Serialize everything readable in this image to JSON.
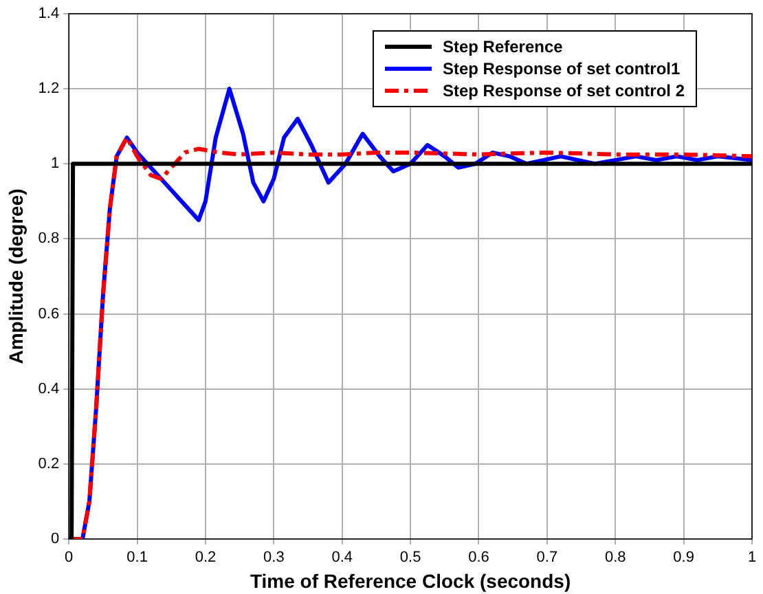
{
  "chart_data": {
    "type": "line",
    "xlabel": "Time of Reference Clock (seconds)",
    "ylabel": "Amplitude (degree)",
    "xlim": [
      0,
      1
    ],
    "xticks": [
      0,
      0.1,
      0.2,
      0.3,
      0.4,
      0.5,
      0.6,
      0.7,
      0.8,
      0.9,
      1
    ],
    "ylim": [
      0,
      1.4
    ],
    "yticks": [
      0,
      0.2,
      0.4,
      0.6,
      0.8,
      1,
      1.2,
      1.4
    ],
    "grid": true,
    "legend": "top right",
    "marker": "none",
    "series": [
      {
        "name": "Step Reference",
        "color": "#000000",
        "line_style": "solid",
        "x": [
          0,
          0.004,
          0.006,
          0.5,
          1
        ],
        "values": [
          0,
          0,
          1,
          1,
          1
        ]
      },
      {
        "name": "Step Response of set control1",
        "color": "#0000ff",
        "line_style": "solid",
        "x": [
          0,
          0.02,
          0.03,
          0.04,
          0.05,
          0.06,
          0.07,
          0.085,
          0.1,
          0.19,
          0.2,
          0.215,
          0.235,
          0.255,
          0.27,
          0.285,
          0.3,
          0.315,
          0.335,
          0.355,
          0.38,
          0.405,
          0.43,
          0.455,
          0.475,
          0.5,
          0.525,
          0.55,
          0.57,
          0.595,
          0.62,
          0.645,
          0.67,
          0.695,
          0.72,
          0.745,
          0.77,
          0.8,
          0.83,
          0.86,
          0.89,
          0.92,
          0.95,
          1
        ],
        "values": [
          0,
          0,
          0.1,
          0.35,
          0.65,
          0.88,
          1.02,
          1.07,
          1.03,
          0.85,
          0.9,
          1.07,
          1.2,
          1.08,
          0.95,
          0.9,
          0.96,
          1.07,
          1.12,
          1.05,
          0.95,
          1.0,
          1.08,
          1.02,
          0.98,
          1.0,
          1.05,
          1.02,
          0.99,
          1.0,
          1.03,
          1.02,
          1.0,
          1.01,
          1.02,
          1.01,
          1.0,
          1.01,
          1.02,
          1.01,
          1.02,
          1.01,
          1.02,
          1.01
        ]
      },
      {
        "name": "Step Response of set control 2",
        "color": "#ff0000",
        "line_style": "dashed",
        "x": [
          0,
          0.02,
          0.03,
          0.04,
          0.05,
          0.06,
          0.07,
          0.085,
          0.1,
          0.12,
          0.135,
          0.15,
          0.17,
          0.19,
          0.22,
          0.25,
          0.3,
          0.35,
          0.4,
          0.45,
          0.5,
          0.6,
          0.7,
          0.8,
          0.9,
          1
        ],
        "values": [
          0,
          0,
          0.1,
          0.35,
          0.65,
          0.88,
          1.02,
          1.07,
          1.02,
          0.97,
          0.96,
          0.99,
          1.03,
          1.04,
          1.03,
          1.025,
          1.03,
          1.025,
          1.025,
          1.03,
          1.03,
          1.025,
          1.03,
          1.025,
          1.025,
          1.02
        ]
      }
    ]
  }
}
